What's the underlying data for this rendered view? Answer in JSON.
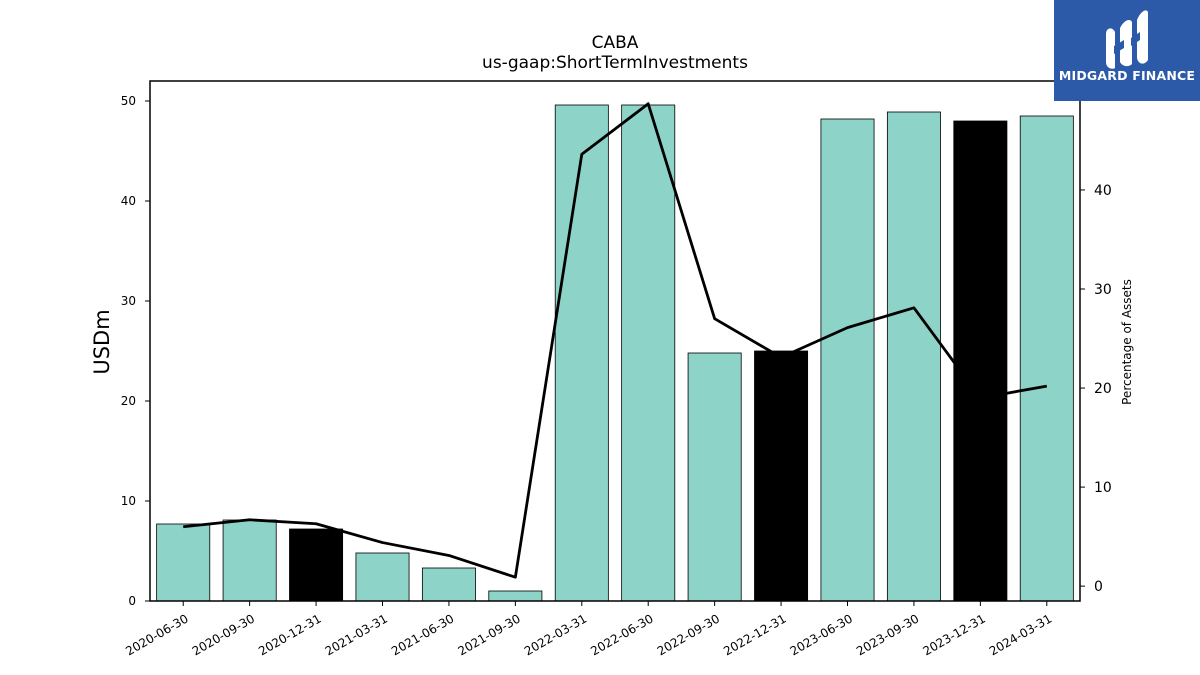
{
  "chart_data": {
    "type": "bar",
    "title": "CABA",
    "subtitle": "us-gaap:ShortTermInvestments",
    "ylabel": "USDm",
    "y2label": "Percentage of Assets",
    "categories": [
      "2020-06-30",
      "2020-09-30",
      "2020-12-31",
      "2021-03-31",
      "2021-06-30",
      "2021-09-30",
      "2022-03-31",
      "2022-06-30",
      "2022-09-30",
      "2022-12-31",
      "2023-06-30",
      "2023-09-30",
      "2023-12-31",
      "2024-03-31"
    ],
    "series": [
      {
        "type": "bar",
        "axis": "left",
        "values": [
          7.7,
          8.1,
          7.2,
          4.8,
          3.3,
          1.0,
          49.6,
          49.6,
          24.8,
          25.0,
          48.2,
          48.9,
          48.0,
          48.5
        ],
        "colors": [
          "#8dd3c7",
          "#8dd3c7",
          "#000000",
          "#8dd3c7",
          "#8dd3c7",
          "#8dd3c7",
          "#8dd3c7",
          "#8dd3c7",
          "#8dd3c7",
          "#000000",
          "#8dd3c7",
          "#8dd3c7",
          "#000000",
          "#8dd3c7"
        ]
      },
      {
        "type": "line",
        "axis": "right",
        "color": "#000000",
        "values": [
          6.0,
          6.7,
          6.3,
          4.4,
          3.1,
          0.9,
          43.6,
          48.7,
          27.0,
          23.1,
          26.1,
          28.1,
          19.0,
          20.2
        ]
      }
    ],
    "ylim": [
      0,
      52
    ],
    "y2lim": [
      -1.5,
      51
    ],
    "yticks": [
      0,
      10,
      20,
      30,
      40,
      50
    ],
    "y2ticks": [
      0,
      10,
      20,
      30,
      40
    ],
    "grid": false,
    "legend": "none"
  },
  "logo": {
    "text": "MIDGARD FINANCE",
    "icon": "midgard-m-logo-icon",
    "color": "#2c5aa8"
  }
}
